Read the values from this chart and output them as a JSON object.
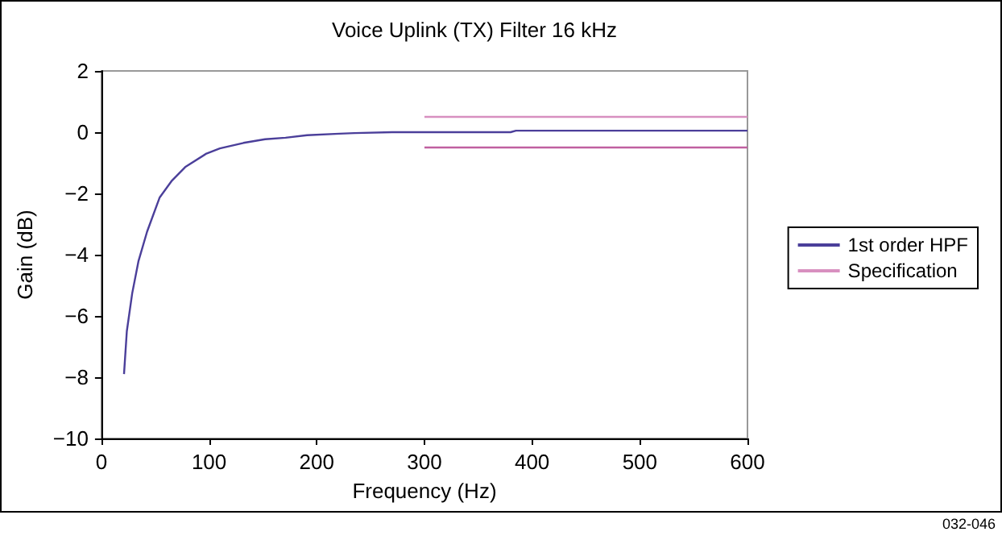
{
  "chart_data": {
    "type": "line",
    "title": "Voice Uplink (TX) Filter 16 kHz",
    "xlabel": "Frequency (Hz)",
    "ylabel": "Gain (dB)",
    "series": [
      {
        "name": "1st order HPF",
        "color": "#4b3f9a",
        "x": [
          21,
          23.6,
          28.6,
          34.5,
          42.4,
          54,
          65.5,
          77.8,
          97.5,
          110,
          132,
          152,
          171,
          191,
          221,
          235,
          270,
          300,
          380,
          385,
          600
        ],
        "values": [
          -7.9,
          -6.5,
          -5.26,
          -4.2,
          -3.25,
          -2.14,
          -1.58,
          -1.14,
          -0.7,
          -0.53,
          -0.35,
          -0.23,
          -0.18,
          -0.1,
          -0.05,
          -0.03,
          0,
          0,
          0,
          0.05,
          0.05
        ]
      },
      {
        "name": "Specification",
        "color": "#d890c0",
        "x": [
          300,
          600
        ],
        "values": [
          0.5,
          0.5
        ]
      },
      {
        "color": "#c060a0",
        "x": [
          300,
          600
        ],
        "values": [
          -0.5,
          -0.5
        ]
      }
    ],
    "xlim": [
      0,
      600
    ],
    "xticks": [
      0,
      100,
      200,
      300,
      400,
      500,
      600
    ],
    "ylim": [
      -10,
      2
    ],
    "yticks": [
      {
        "value": -10,
        "label": "−10"
      },
      {
        "value": -8,
        "label": "−8"
      },
      {
        "value": -6,
        "label": "−6"
      },
      {
        "value": -4,
        "label": "−4"
      },
      {
        "value": -2,
        "label": "−2"
      },
      0,
      2
    ],
    "grid": false,
    "legend": "right",
    "marker": "none",
    "line_style": "solid",
    "annotations": [
      "032-046"
    ]
  }
}
